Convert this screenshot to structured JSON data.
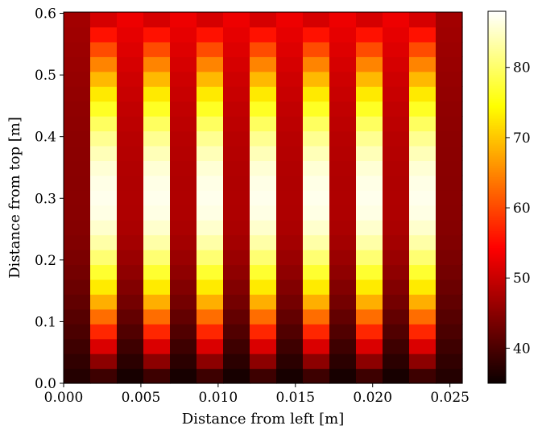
{
  "chart_data": {
    "type": "heatmap",
    "title": "",
    "xlabel": "Distance from left [m]",
    "ylabel": "Distance from top [m]",
    "xlim": [
      0.0,
      0.0258
    ],
    "ylim": [
      0.0,
      0.602
    ],
    "x_ticks": [
      0.0,
      0.005,
      0.01,
      0.015,
      0.02,
      0.025
    ],
    "x_tick_labels": [
      "0.000",
      "0.005",
      "0.010",
      "0.015",
      "0.020",
      "0.025"
    ],
    "y_ticks": [
      0.0,
      0.1,
      0.2,
      0.3,
      0.4,
      0.5,
      0.6
    ],
    "y_tick_labels": [
      "0.0",
      "0.1",
      "0.2",
      "0.3",
      "0.4",
      "0.5",
      "0.6"
    ],
    "grid": false,
    "colormap": "hot",
    "colorbar": {
      "vmin": 35,
      "vmax": 88,
      "ticks": [
        40,
        50,
        60,
        70,
        80
      ],
      "tick_labels": [
        "40",
        "50",
        "60",
        "70",
        "80"
      ]
    },
    "columns": 15,
    "rows": 25,
    "column_types": [
      "edge",
      "hot",
      "mid",
      "hot",
      "mid",
      "hot",
      "mid",
      "hot",
      "mid",
      "hot",
      "mid",
      "hot",
      "mid",
      "hot",
      "edge"
    ],
    "column_profiles": {
      "edge": {
        "bottom": 37,
        "peak": 45,
        "top": 47
      },
      "mid": {
        "bottom": 36,
        "peak": 48,
        "top": 53
      },
      "hot": {
        "bottom": 39,
        "peak": 87,
        "top": 51
      }
    }
  }
}
